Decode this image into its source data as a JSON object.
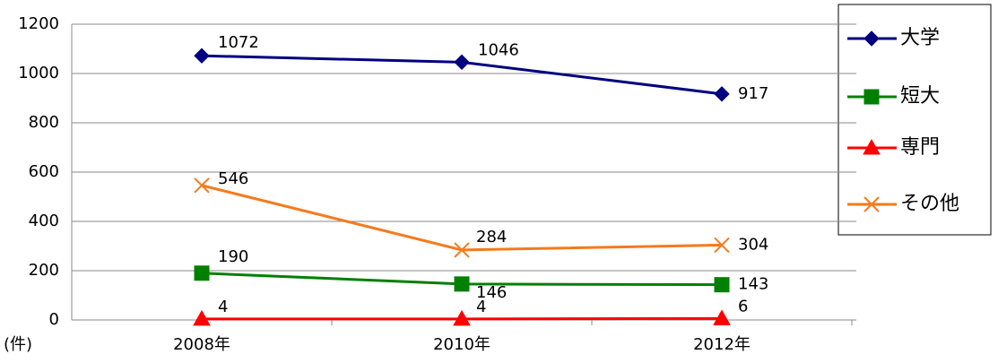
{
  "chart_data": {
    "type": "line",
    "categories": [
      "2008年",
      "2010年",
      "2012年"
    ],
    "y_unit": "(件)",
    "ylim": [
      0,
      1200
    ],
    "yticks": [
      0,
      200,
      400,
      600,
      800,
      1000,
      1200
    ],
    "grid": true,
    "legend": "right",
    "series": [
      {
        "name": "大学",
        "color": "#000080",
        "marker": "diamond",
        "values": [
          1072,
          1046,
          917
        ]
      },
      {
        "name": "短大",
        "color": "#008000",
        "marker": "square",
        "values": [
          190,
          146,
          143
        ]
      },
      {
        "name": "専門",
        "color": "#ff0000",
        "marker": "triangle",
        "values": [
          4,
          4,
          6
        ]
      },
      {
        "name": "その他",
        "color": "#f57a1c",
        "marker": "x",
        "values": [
          546,
          284,
          304
        ]
      }
    ]
  }
}
